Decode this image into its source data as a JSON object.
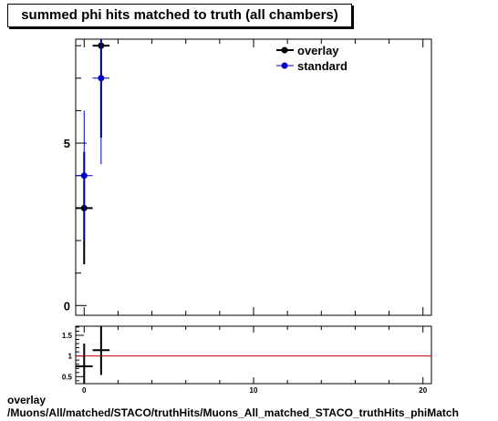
{
  "title": "summed phi hits matched to truth (all chambers)",
  "footer": {
    "line1": "overlay",
    "line2": "/Muons/All/matched/STACO/truthHits/Muons_All_matched_STACO_truthHits_phiMatch"
  },
  "colors": {
    "overlay": "#000000",
    "standard": "#0000cc",
    "ratio_line": "#cc0000"
  },
  "chart_data": [
    {
      "type": "scatter",
      "title": "summed phi hits matched to truth (all chambers)",
      "xlim": [
        -0.5,
        20.5
      ],
      "ylim": [
        -0.3,
        8.2
      ],
      "yticks": [
        0,
        5
      ],
      "legend_position": "top-right",
      "series": [
        {
          "name": "overlay",
          "color": "#000000",
          "points": [
            {
              "x": 0,
              "y": 3,
              "xerr": 0.5,
              "yerr": 1.73
            },
            {
              "x": 1,
              "y": 8,
              "xerr": 0.5,
              "yerr": 2.83
            }
          ]
        },
        {
          "name": "standard",
          "color": "#0000cc",
          "points": [
            {
              "x": 0,
              "y": 4,
              "xerr": 0.5,
              "yerr": 2.0
            },
            {
              "x": 1,
              "y": 7,
              "xerr": 0.5,
              "yerr": 2.65
            }
          ]
        }
      ]
    },
    {
      "type": "scatter",
      "xlim": [
        -0.5,
        20.5
      ],
      "ylim": [
        0.33,
        1.72
      ],
      "xticks": [
        0,
        10,
        20
      ],
      "yticks": [
        0.5,
        1,
        1.5
      ],
      "reference_line": 1,
      "points": [
        {
          "x": 0,
          "y": 0.75,
          "xerr": 0.5,
          "yerr": 0.55
        },
        {
          "x": 1,
          "y": 1.14,
          "xerr": 0.5,
          "yerr": 0.6
        }
      ]
    }
  ]
}
